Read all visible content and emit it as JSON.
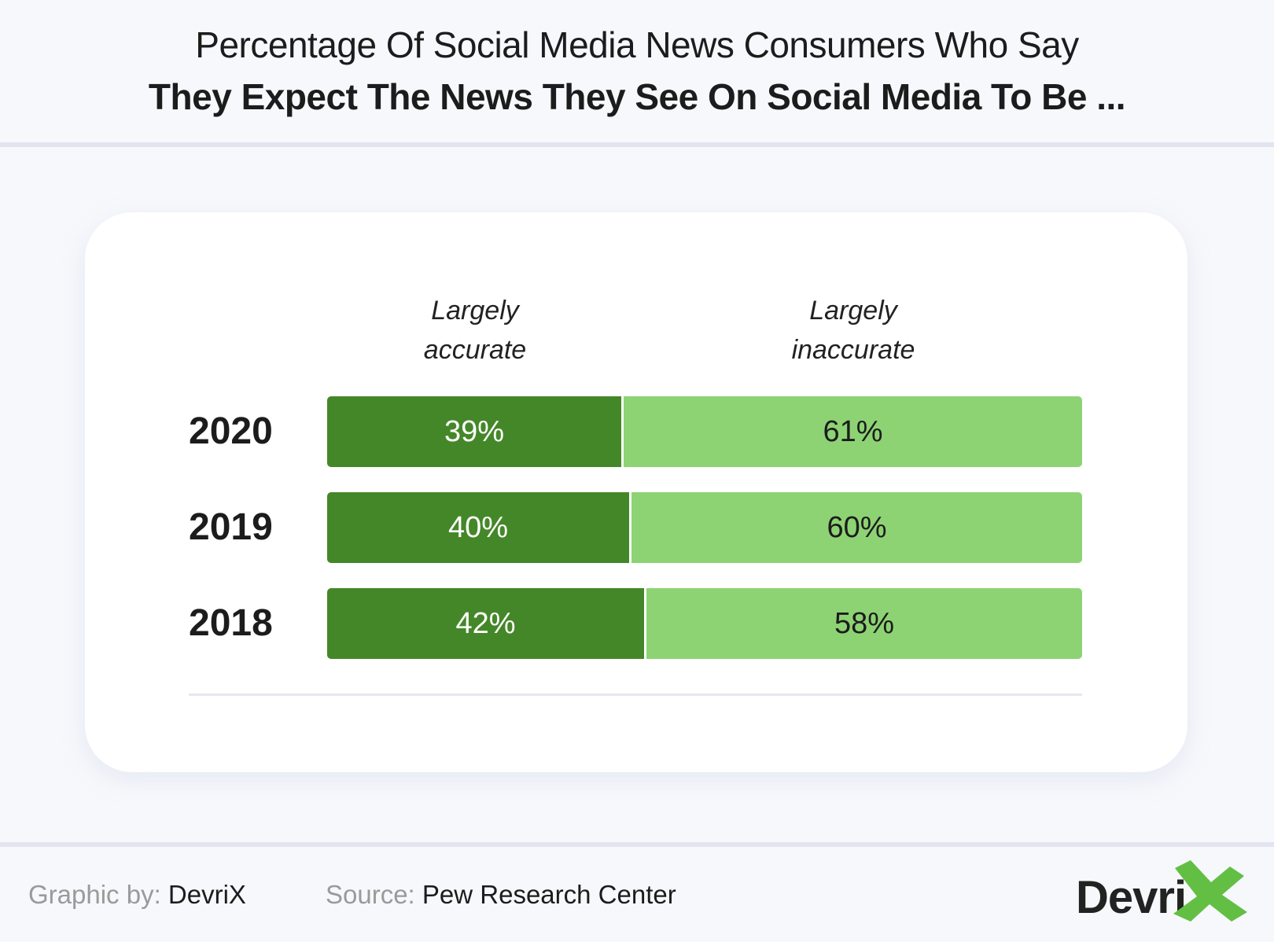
{
  "header": {
    "title_line1": "Percentage Of Social Media News Consumers Who Say",
    "title_line2": "They Expect The News They See On Social Media To Be ..."
  },
  "footer": {
    "graphic_by_label": "Graphic by:",
    "graphic_by_value": "DevriX",
    "source_label": "Source:",
    "source_value": "Pew Research Center",
    "logo_text": "Devri",
    "logo_icon": "x-mark-icon"
  },
  "colors": {
    "accurate": "#448728",
    "inaccurate": "#8dd374",
    "logo_x": "#62bf44",
    "background": "#f7f8fc"
  },
  "chart_data": {
    "type": "bar",
    "orientation": "horizontal-stacked-100",
    "title": "Percentage Of Social Media News Consumers Who Say They Expect The News They See On Social Media To Be ...",
    "categories": [
      "2020",
      "2019",
      "2018"
    ],
    "series": [
      {
        "name": "Largely accurate",
        "header_line1": "Largely",
        "header_line2": "accurate",
        "values": [
          39,
          40,
          42
        ],
        "labels": [
          "39%",
          "40%",
          "42%"
        ]
      },
      {
        "name": "Largely inaccurate",
        "header_line1": "Largely",
        "header_line2": "inaccurate",
        "values": [
          61,
          60,
          58
        ],
        "labels": [
          "61%",
          "60%",
          "58%"
        ]
      }
    ],
    "xlim": [
      0,
      100
    ],
    "unit": "%",
    "grid": false,
    "legend": "top (column headers)"
  }
}
